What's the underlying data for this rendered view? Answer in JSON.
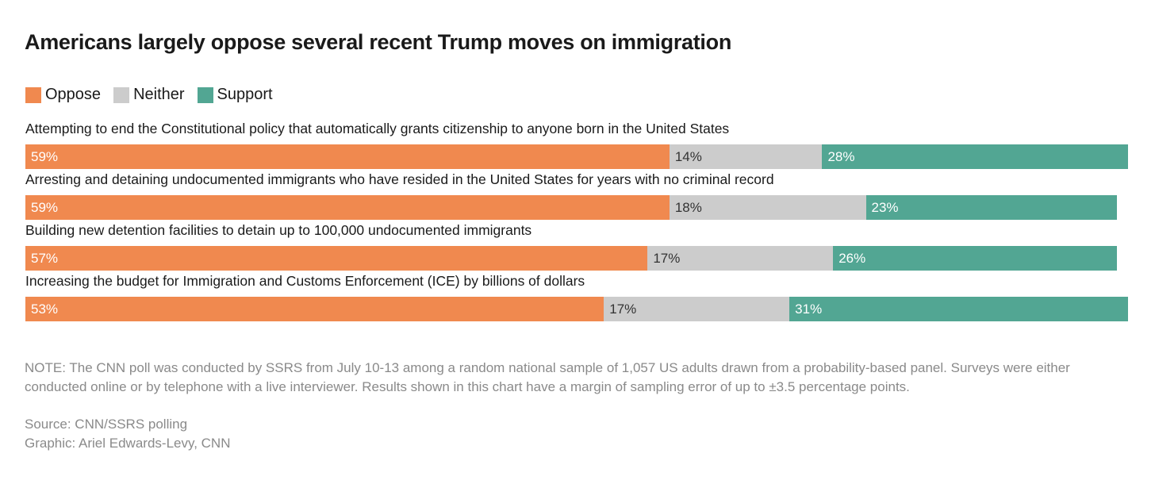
{
  "chart_data": {
    "type": "bar",
    "orientation": "horizontal-stacked",
    "title": "Americans largely oppose several recent Trump moves on immigration",
    "legend": [
      {
        "name": "Oppose",
        "color": "#F0894F"
      },
      {
        "name": "Neither",
        "color": "#CCCCCC"
      },
      {
        "name": "Support",
        "color": "#52A693"
      }
    ],
    "legend_placement": "top-left",
    "categories": [
      "Attempting to end the Constitutional policy that automatically grants citizenship to anyone born in the United States",
      "Arresting and detaining undocumented immigrants who have resided in the United States for years with no criminal record",
      "Building new detention facilities to detain up to 100,000 undocumented immigrants",
      "Increasing the budget for Immigration and Customs Enforcement (ICE) by billions of dollars"
    ],
    "series": [
      {
        "name": "Oppose",
        "values": [
          59,
          59,
          57,
          53
        ],
        "labels": [
          "59%",
          "59%",
          "57%",
          "53%"
        ]
      },
      {
        "name": "Neither",
        "values": [
          14,
          18,
          17,
          17
        ],
        "labels": [
          "14%",
          "18%",
          "17%",
          "17%"
        ]
      },
      {
        "name": "Support",
        "values": [
          28,
          23,
          26,
          31
        ],
        "labels": [
          "28%",
          "23%",
          "26%",
          "31%"
        ]
      }
    ],
    "xlabel": "",
    "ylabel": "",
    "xlim": [
      0,
      100
    ],
    "grid": false
  },
  "footer": {
    "note": "NOTE: The CNN poll was conducted by SSRS from July 10-13 among a random national sample of 1,057 US adults drawn from a probability-based panel. Surveys were either conducted online or by telephone with a live interviewer. Results shown in this chart have a margin of sampling error of up to ±3.5 percentage points.",
    "source": "Source: CNN/SSRS polling",
    "graphic": "Graphic: Ariel Edwards-Levy, CNN"
  }
}
